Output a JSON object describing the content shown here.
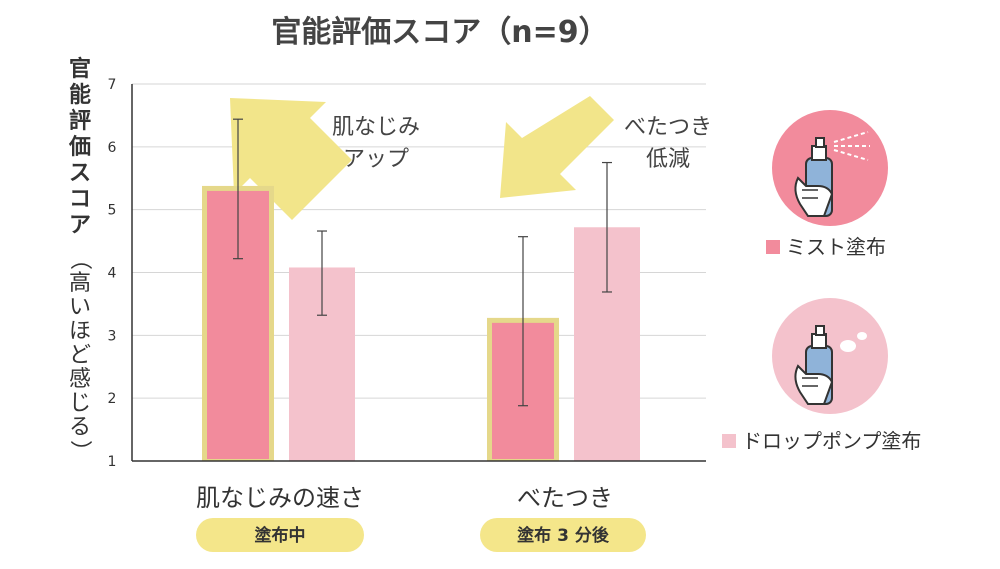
{
  "chart_data": {
    "type": "bar",
    "title": "官能評価スコア（n=9）",
    "ylabel_main": "官能評価スコア",
    "ylabel_sub": "（高いほど感じる）",
    "ylim": [
      1,
      7
    ],
    "yticks": [
      1,
      2,
      3,
      4,
      5,
      6,
      7
    ],
    "categories": [
      "肌なじみの速さ",
      "べたつき"
    ],
    "timing": [
      "塗布中",
      "塗布 3 分後"
    ],
    "series": [
      {
        "name": "ミスト塗布",
        "values": [
          5.33,
          3.23
        ],
        "err_low": [
          4.22,
          1.88
        ],
        "err_high": [
          6.44,
          4.57
        ],
        "color": "#f28b9c",
        "highlight": true
      },
      {
        "name": "ドロップポンプ塗布",
        "values": [
          4.08,
          4.72
        ],
        "err_low": [
          3.32,
          3.69
        ],
        "err_high": [
          4.66,
          5.75
        ],
        "color": "#f4c2cc"
      }
    ],
    "annotations": [
      {
        "lines": [
          "肌なじみ",
          "アップ"
        ],
        "direction": "up"
      },
      {
        "lines": [
          "べたつき",
          "低減"
        ],
        "direction": "down"
      }
    ],
    "grid": true,
    "legend_position": "right"
  },
  "colors": {
    "highlight_border": "#e5d88a",
    "arrow": "#f2e58a",
    "pill": "#f4e68a",
    "mist_circle": "#f28b9c",
    "drop_circle": "#f4c2cc",
    "bottle": "#8fb3d9"
  },
  "icons": [
    "mist-spray-hand-icon",
    "drop-pump-hand-icon"
  ]
}
